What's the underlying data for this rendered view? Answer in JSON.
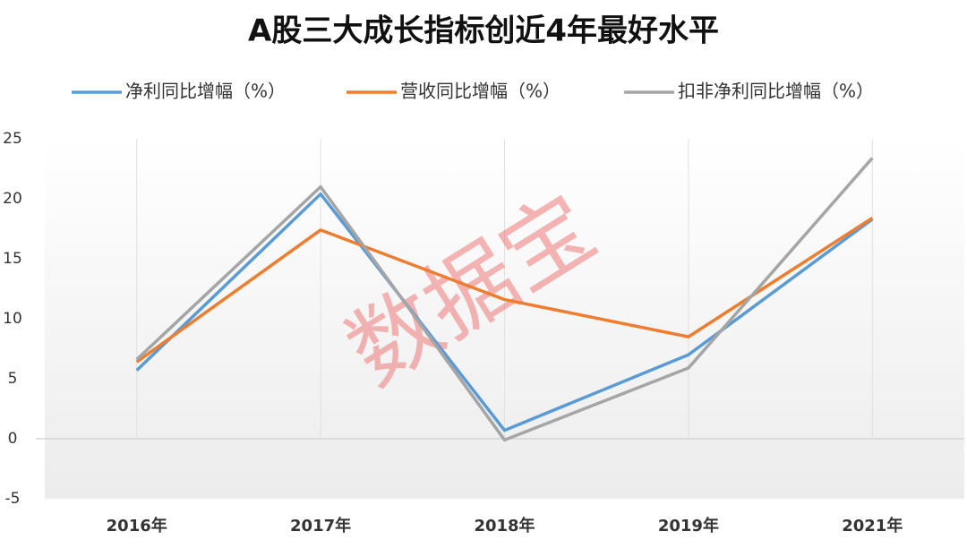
{
  "chart_data": {
    "type": "line",
    "title": "A股三大成长指标创近4年最好水平",
    "watermark": "数据宝",
    "categories": [
      "2016年",
      "2017年",
      "2018年",
      "2019年",
      "2021年"
    ],
    "series": [
      {
        "name": "净利同比增幅（%）",
        "color": "#5b9bd5",
        "values": [
          5.7,
          20.4,
          0.7,
          7.0,
          18.3
        ]
      },
      {
        "name": "营收同比增幅（%）",
        "color": "#ed7d31",
        "values": [
          6.4,
          17.4,
          11.6,
          8.5,
          18.4
        ]
      },
      {
        "name": "扣非净利同比增幅（%）",
        "color": "#a5a5a5",
        "values": [
          6.6,
          21.0,
          -0.1,
          5.9,
          23.4
        ]
      }
    ],
    "ylim": [
      -5,
      25
    ],
    "yticks": [
      -5,
      0,
      5,
      10,
      15,
      20,
      25
    ],
    "legend": "top"
  }
}
